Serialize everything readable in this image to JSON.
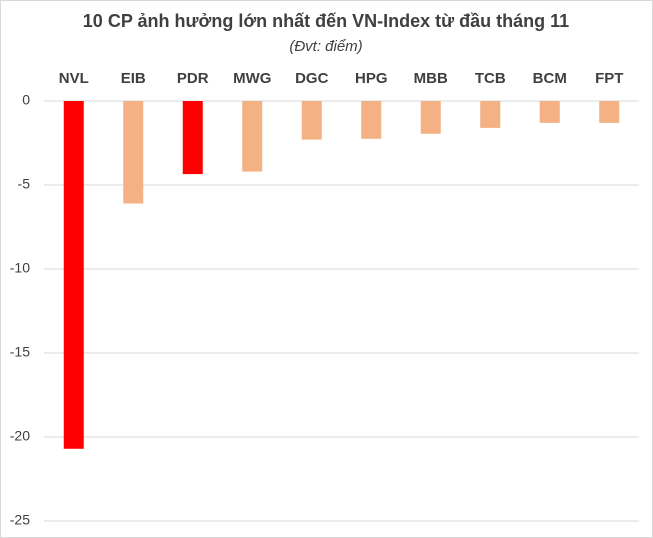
{
  "chart_data": {
    "type": "bar",
    "title": "10 CP ảnh hưởng lớn nhất đến VN-Index từ đầu tháng 11",
    "subtitle": "(Đvt: điểm)",
    "categories": [
      "NVL",
      "EIB",
      "PDR",
      "MWG",
      "DGC",
      "HPG",
      "MBB",
      "TCB",
      "BCM",
      "FPT"
    ],
    "values": [
      -20.7,
      -6.1,
      -4.35,
      -4.2,
      -2.3,
      -2.25,
      -1.95,
      -1.6,
      -1.3,
      -1.3
    ],
    "colors": [
      "#ff0000",
      "#f4b183",
      "#ff0000",
      "#f4b183",
      "#f4b183",
      "#f4b183",
      "#f4b183",
      "#f4b183",
      "#f4b183",
      "#f4b183"
    ],
    "ylim": [
      -25,
      0
    ],
    "yticks": [
      0,
      -5,
      -10,
      -15,
      -20,
      -25
    ],
    "grid": true
  }
}
